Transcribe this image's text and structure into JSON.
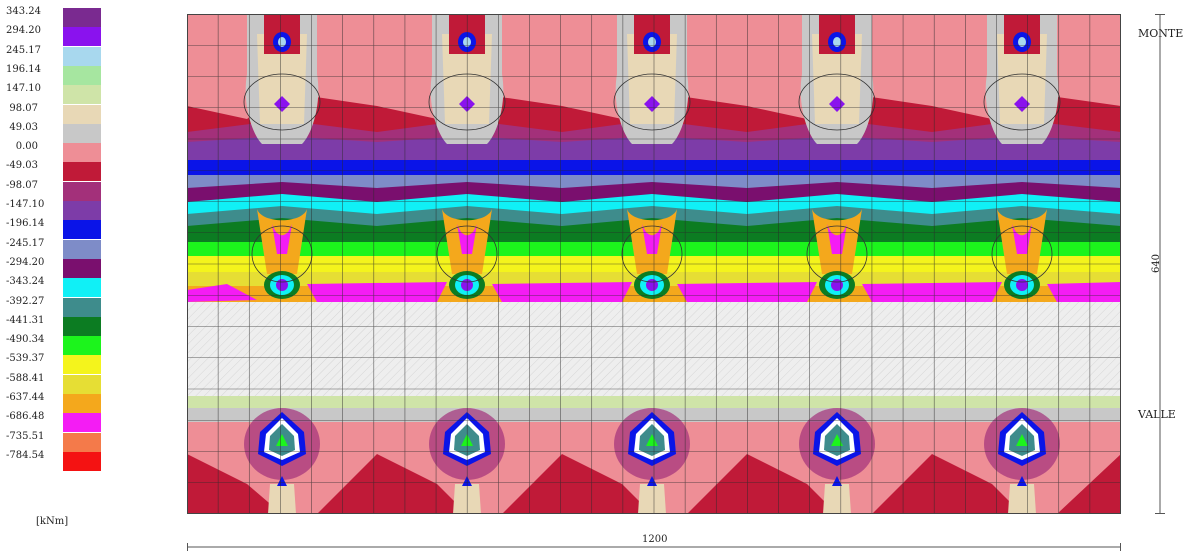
{
  "legend": {
    "unit": "[kNm]",
    "entries": [
      {
        "label": "343.24",
        "color": "#7a2a90"
      },
      {
        "label": "294.20",
        "color": "#8a12ee"
      },
      {
        "label": "245.17",
        "color": "#a8d8ee"
      },
      {
        "label": "196.14",
        "color": "#a6e6a0"
      },
      {
        "label": "147.10",
        "color": "#cfe4a8"
      },
      {
        "label": "98.07",
        "color": "#e8d8b6"
      },
      {
        "label": "49.03",
        "color": "#c8c8c8"
      },
      {
        "label": "0.00",
        "color": "#ee8e96"
      },
      {
        "label": "-49.03",
        "color": "#c01a38"
      },
      {
        "label": "-98.07",
        "color": "#a3307a"
      },
      {
        "label": "-147.10",
        "color": "#7d3ca8"
      },
      {
        "label": "-196.14",
        "color": "#0a14e8"
      },
      {
        "label": "-245.17",
        "color": "#7e8cc8"
      },
      {
        "label": "-294.20",
        "color": "#7a0f6e"
      },
      {
        "label": "-343.24",
        "color": "#10f0f6"
      },
      {
        "label": "-392.27",
        "color": "#3e8c8c"
      },
      {
        "label": "-441.31",
        "color": "#0c7c22"
      },
      {
        "label": "-490.34",
        "color": "#1cf41c"
      },
      {
        "label": "-539.37",
        "color": "#f4f41c"
      },
      {
        "label": "-588.41",
        "color": "#e6de34"
      },
      {
        "label": "-637.44",
        "color": "#f4a81c"
      },
      {
        "label": "-686.48",
        "color": "#f41cf4"
      },
      {
        "label": "-735.51",
        "color": "#f47a4a"
      },
      {
        "label": "-784.54",
        "color": "#f41212"
      }
    ]
  },
  "plot_labels": {
    "upper": "MONTE",
    "lower": "VALLE"
  },
  "dimensions": {
    "vertical": "640",
    "horizontal": "1200"
  }
}
